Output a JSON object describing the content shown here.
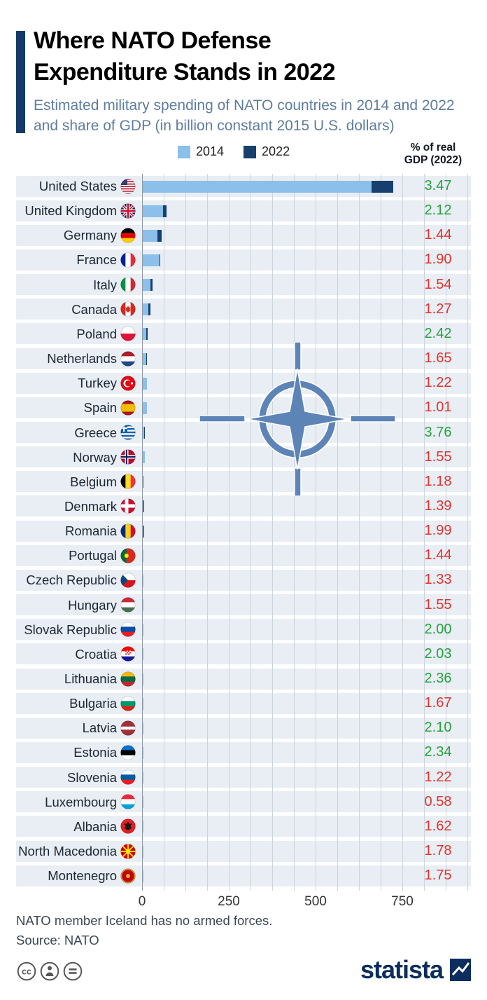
{
  "header": {
    "title_line1": "Where NATO Defense",
    "title_line2": "Expenditure Stands in 2022",
    "subtitle": "Estimated military spending of NATO countries in 2014 and 2022 and share of GDP (in billion constant 2015 U.S. dollars)"
  },
  "legend": {
    "items": [
      {
        "label": "2014",
        "color": "#8cbfe9"
      },
      {
        "label": "2022",
        "color": "#17406f"
      }
    ]
  },
  "gdp_header": {
    "line1": "% of real",
    "line2": "GDP (2022)"
  },
  "colors": {
    "band": "#e9edf4",
    "grid": "#ccd4de",
    "axis": "#8e99a6",
    "bar2014": "#8cbfe9",
    "bar2022": "#17406f",
    "green": "#23a33b",
    "red": "#e2342c",
    "accent": "#143a6b",
    "emblem": "#5d84b6"
  },
  "chart_data": {
    "type": "bar",
    "orientation": "horizontal",
    "title": "Where NATO Defense Expenditure Stands in 2022",
    "unit": "billion constant 2015 U.S. dollars",
    "series_names": [
      "2014",
      "2022"
    ],
    "x_ticks": [
      0,
      250,
      500,
      750
    ],
    "xlim": [
      0,
      945
    ],
    "grid": true,
    "legend_position": "top",
    "gdp_column_label": "% of real GDP (2022)",
    "countries": [
      {
        "name": "United States",
        "v2014": 660,
        "v2022": 723,
        "gdp": "3.47",
        "gdp_color": "green",
        "flag": {
          "t": "us"
        }
      },
      {
        "name": "United Kingdom",
        "v2014": 59,
        "v2022": 69,
        "gdp": "2.12",
        "gdp_color": "green",
        "flag": {
          "t": "uk"
        }
      },
      {
        "name": "Germany",
        "v2014": 44,
        "v2022": 55,
        "gdp": "1.44",
        "gdp_color": "red",
        "flag": {
          "t": "h",
          "c": [
            "#000000",
            "#dd0000",
            "#ffce00"
          ]
        }
      },
      {
        "name": "France",
        "v2014": 50,
        "v2022": 52,
        "gdp": "1.90",
        "gdp_color": "red",
        "flag": {
          "t": "v",
          "c": [
            "#002395",
            "#ffffff",
            "#ed2939"
          ]
        }
      },
      {
        "name": "Italy",
        "v2014": 24,
        "v2022": 30,
        "gdp": "1.54",
        "gdp_color": "red",
        "flag": {
          "t": "v",
          "c": [
            "#009246",
            "#ffffff",
            "#ce2b37"
          ]
        }
      },
      {
        "name": "Canada",
        "v2014": 18,
        "v2022": 24,
        "gdp": "1.27",
        "gdp_color": "red",
        "flag": {
          "t": "v",
          "c": [
            "#d52b1e",
            "#ffffff",
            "#d52b1e"
          ],
          "ov": "maple",
          "oc": "#d52b1e"
        }
      },
      {
        "name": "Poland",
        "v2014": 10,
        "v2022": 16,
        "gdp": "2.42",
        "gdp_color": "green",
        "flag": {
          "t": "h",
          "c": [
            "#ffffff",
            "#dc143c"
          ]
        }
      },
      {
        "name": "Netherlands",
        "v2014": 10,
        "v2022": 14,
        "gdp": "1.65",
        "gdp_color": "red",
        "flag": {
          "t": "h",
          "c": [
            "#ae1c28",
            "#ffffff",
            "#21468b"
          ]
        }
      },
      {
        "name": "Turkey",
        "v2014": 12,
        "v2022": 11,
        "gdp": "1.22",
        "gdp_color": "red",
        "flag": {
          "t": "crescent",
          "bg": "#e30a17"
        }
      },
      {
        "name": "Spain",
        "v2014": 12,
        "v2022": 14,
        "gdp": "1.01",
        "gdp_color": "red",
        "flag": {
          "t": "h",
          "c": [
            "#aa151b",
            "#f1bf00",
            "#aa151b"
          ],
          "w": [
            1,
            2,
            1
          ]
        }
      },
      {
        "name": "Greece",
        "v2014": 5,
        "v2022": 7.5,
        "gdp": "3.76",
        "gdp_color": "green",
        "flag": {
          "t": "gr"
        }
      },
      {
        "name": "Norway",
        "v2014": 6,
        "v2022": 7.6,
        "gdp": "1.55",
        "gdp_color": "red",
        "flag": {
          "t": "nordic",
          "bg": "#ba0c2f",
          "c1": "#ffffff",
          "c2": "#00205b"
        }
      },
      {
        "name": "Belgium",
        "v2014": 4.5,
        "v2022": 5.7,
        "gdp": "1.18",
        "gdp_color": "red",
        "flag": {
          "t": "v",
          "c": [
            "#000000",
            "#fdda25",
            "#ef3340"
          ]
        }
      },
      {
        "name": "Denmark",
        "v2014": 3.8,
        "v2022": 5.3,
        "gdp": "1.39",
        "gdp_color": "red",
        "flag": {
          "t": "nordic",
          "bg": "#c8102e",
          "c1": "#ffffff"
        }
      },
      {
        "name": "Romania",
        "v2014": 2.7,
        "v2022": 4.5,
        "gdp": "1.99",
        "gdp_color": "red",
        "flag": {
          "t": "v",
          "c": [
            "#002b7f",
            "#fcd116",
            "#ce1126"
          ]
        }
      },
      {
        "name": "Portugal",
        "v2014": 3.3,
        "v2022": 3.2,
        "gdp": "1.44",
        "gdp_color": "red",
        "flag": {
          "t": "v",
          "c": [
            "#046a38",
            "#da291c"
          ],
          "w": [
            2,
            3
          ],
          "ov": "dot",
          "oc": "#ffe900",
          "ox": 0.4
        }
      },
      {
        "name": "Czech Republic",
        "v2014": 1.9,
        "v2022": 3.7,
        "gdp": "1.33",
        "gdp_color": "red",
        "flag": {
          "t": "cz"
        }
      },
      {
        "name": "Hungary",
        "v2014": 1.2,
        "v2022": 2.6,
        "gdp": "1.55",
        "gdp_color": "red",
        "flag": {
          "t": "h",
          "c": [
            "#ce2939",
            "#ffffff",
            "#477050"
          ]
        }
      },
      {
        "name": "Slovak Republic",
        "v2014": 1.0,
        "v2022": 1.9,
        "gdp": "2.00",
        "gdp_color": "green",
        "flag": {
          "t": "h",
          "c": [
            "#ffffff",
            "#0b4ea2",
            "#ee1c25"
          ]
        }
      },
      {
        "name": "Croatia",
        "v2014": 0.9,
        "v2022": 1.2,
        "gdp": "2.03",
        "gdp_color": "green",
        "flag": {
          "t": "h",
          "c": [
            "#ff0000",
            "#ffffff",
            "#171796"
          ],
          "ov": "check"
        }
      },
      {
        "name": "Lithuania",
        "v2014": 0.4,
        "v2022": 1.5,
        "gdp": "2.36",
        "gdp_color": "green",
        "flag": {
          "t": "h",
          "c": [
            "#fdb913",
            "#006a44",
            "#c1272d"
          ]
        }
      },
      {
        "name": "Bulgaria",
        "v2014": 0.7,
        "v2022": 1.0,
        "gdp": "1.67",
        "gdp_color": "red",
        "flag": {
          "t": "h",
          "c": [
            "#ffffff",
            "#00966e",
            "#d62612"
          ]
        }
      },
      {
        "name": "Latvia",
        "v2014": 0.25,
        "v2022": 0.75,
        "gdp": "2.10",
        "gdp_color": "green",
        "flag": {
          "t": "h",
          "c": [
            "#9e3039",
            "#ffffff",
            "#9e3039"
          ],
          "w": [
            2,
            1,
            2
          ]
        }
      },
      {
        "name": "Estonia",
        "v2014": 0.4,
        "v2022": 0.8,
        "gdp": "2.34",
        "gdp_color": "green",
        "flag": {
          "t": "h",
          "c": [
            "#0072ce",
            "#000000",
            "#ffffff"
          ]
        }
      },
      {
        "name": "Slovenia",
        "v2014": 0.4,
        "v2022": 0.55,
        "gdp": "1.22",
        "gdp_color": "red",
        "flag": {
          "t": "h",
          "c": [
            "#ffffff",
            "#005da4",
            "#ed1c24"
          ]
        }
      },
      {
        "name": "Luxembourg",
        "v2014": 0.25,
        "v2022": 0.5,
        "gdp": "0.58",
        "gdp_color": "red",
        "flag": {
          "t": "h",
          "c": [
            "#ed2939",
            "#ffffff",
            "#00a1de"
          ]
        }
      },
      {
        "name": "Albania",
        "v2014": 0.15,
        "v2022": 0.2,
        "gdp": "1.62",
        "gdp_color": "red",
        "flag": {
          "t": "plain",
          "bg": "#e41e20",
          "ov": "eagle",
          "oc": "#1a1a1a"
        }
      },
      {
        "name": "North Macedonia",
        "v2014": 0.1,
        "v2022": 0.2,
        "gdp": "1.78",
        "gdp_color": "red",
        "flag": {
          "t": "sun",
          "bg": "#d20000",
          "fg": "#ffe600"
        }
      },
      {
        "name": "Montenegro",
        "v2014": 0.06,
        "v2022": 0.09,
        "gdp": "1.75",
        "gdp_color": "red",
        "flag": {
          "t": "plain",
          "bg": "#c40308",
          "border": "#d3ae3b",
          "ov": "dot",
          "oc": "#d3ae3b"
        }
      }
    ]
  },
  "footer": {
    "note": "NATO member Iceland has no armed forces.",
    "source": "Source: NATO"
  },
  "branding": {
    "wordmark": "statista",
    "cc_icons": [
      "cc-icon",
      "attribution-icon",
      "equals-icon"
    ]
  }
}
